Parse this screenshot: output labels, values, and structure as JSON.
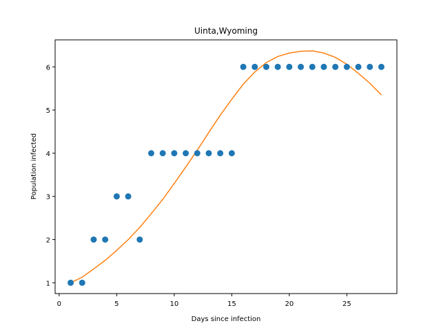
{
  "chart_data": {
    "type": "scatter",
    "title": "Uinta,Wyoming",
    "xlabel": "Days since infection",
    "ylabel": "Population infected",
    "xlim": [
      -0.35,
      29.35
    ],
    "ylim": [
      0.75,
      6.625
    ],
    "xticks": [
      0,
      5,
      10,
      15,
      20,
      25
    ],
    "yticks": [
      1,
      2,
      3,
      4,
      5,
      6
    ],
    "grid": false,
    "series": [
      {
        "kind": "scatter",
        "color": "#1f77b4",
        "x": [
          1,
          2,
          3,
          4,
          5,
          6,
          7,
          8,
          9,
          10,
          11,
          12,
          13,
          14,
          15,
          16,
          17,
          18,
          19,
          20,
          21,
          22,
          23,
          24,
          25,
          26,
          27,
          28
        ],
        "y": [
          1,
          1,
          2,
          2,
          3,
          3,
          2,
          4,
          4,
          4,
          4,
          4,
          4,
          4,
          4,
          6,
          6,
          6,
          6,
          6,
          6,
          6,
          6,
          6,
          6,
          6,
          6,
          6
        ]
      },
      {
        "kind": "line",
        "color": "#ff7f0e",
        "x": [
          1,
          2,
          3,
          4,
          5,
          6,
          7,
          8,
          9,
          10,
          11,
          12,
          13,
          14,
          15,
          16,
          17,
          18,
          19,
          20,
          21,
          22,
          23,
          24,
          25,
          26,
          27,
          28
        ],
        "y": [
          1.0,
          1.13,
          1.32,
          1.52,
          1.75,
          2.0,
          2.28,
          2.6,
          2.93,
          3.3,
          3.68,
          4.07,
          4.48,
          4.88,
          5.25,
          5.6,
          5.88,
          6.1,
          6.24,
          6.32,
          6.36,
          6.37,
          6.32,
          6.22,
          6.06,
          5.85,
          5.62,
          5.35
        ]
      }
    ]
  }
}
